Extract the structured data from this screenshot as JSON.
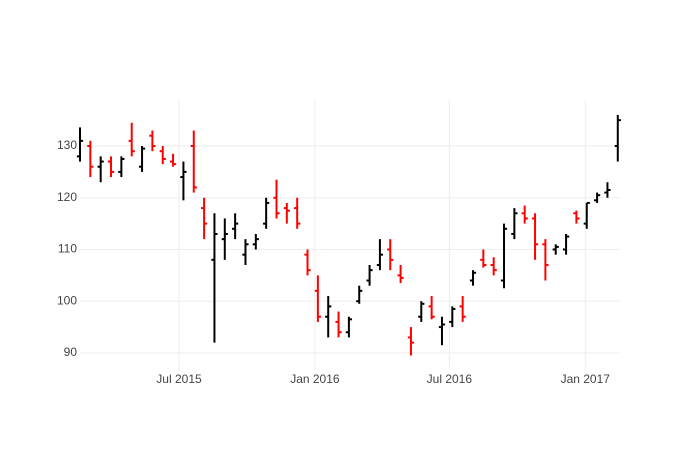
{
  "chart_data": {
    "type": "ohlc",
    "x": [
      "2015-02-17",
      "2015-03-03",
      "2015-03-17",
      "2015-03-31",
      "2015-04-14",
      "2015-04-28",
      "2015-05-12",
      "2015-05-26",
      "2015-06-09",
      "2015-06-23",
      "2015-07-07",
      "2015-07-21",
      "2015-08-04",
      "2015-08-18",
      "2015-09-01",
      "2015-09-15",
      "2015-09-29",
      "2015-10-13",
      "2015-10-27",
      "2015-11-10",
      "2015-11-24",
      "2015-12-08",
      "2015-12-22",
      "2016-01-05",
      "2016-01-19",
      "2016-02-02",
      "2016-02-16",
      "2016-03-01",
      "2016-03-15",
      "2016-03-29",
      "2016-04-12",
      "2016-04-26",
      "2016-05-10",
      "2016-05-24",
      "2016-06-07",
      "2016-06-21",
      "2016-07-05",
      "2016-07-19",
      "2016-08-02",
      "2016-08-16",
      "2016-08-30",
      "2016-09-13",
      "2016-09-27",
      "2016-10-11",
      "2016-10-25",
      "2016-11-08",
      "2016-11-22",
      "2016-12-06",
      "2016-12-20",
      "2017-01-03",
      "2017-01-17",
      "2017-01-31",
      "2017-02-14"
    ],
    "open": [
      128,
      130,
      126,
      127,
      125,
      131,
      126,
      132,
      129,
      127,
      124,
      130,
      118,
      108,
      112,
      114,
      109,
      111,
      115,
      120,
      118,
      118,
      109,
      102,
      97,
      96,
      94,
      100,
      104,
      107,
      110,
      105,
      93,
      97,
      99,
      95,
      96,
      99,
      104,
      108,
      107,
      104,
      113,
      117,
      116,
      111,
      110,
      110,
      117,
      115,
      119.5,
      121,
      130
    ],
    "high": [
      133.6,
      131,
      128,
      128,
      128,
      134.5,
      130,
      133,
      130,
      128.5,
      127,
      133,
      120,
      117,
      116,
      117,
      112,
      113,
      120,
      123.5,
      119,
      120,
      110,
      105,
      101,
      98,
      97,
      103,
      107,
      112,
      112,
      107,
      95,
      100,
      101,
      97,
      99,
      101,
      106,
      110,
      108.5,
      115,
      118,
      118.5,
      117,
      112,
      111,
      113,
      117.5,
      119,
      121,
      123,
      136
    ],
    "low": [
      127,
      124,
      123,
      124,
      124,
      128,
      125,
      129,
      126.5,
      126,
      119.5,
      121,
      112,
      92,
      108,
      112,
      107,
      110,
      114,
      116,
      115,
      114,
      105,
      96,
      93,
      93,
      93,
      99.5,
      103,
      106,
      106,
      103.5,
      89.5,
      96,
      96.5,
      91.5,
      95,
      96,
      103,
      106.5,
      105,
      102.5,
      112,
      115,
      108,
      104,
      109,
      109,
      115,
      114,
      119,
      120,
      127
    ],
    "close": [
      131,
      126,
      127,
      125,
      127.5,
      129,
      129.5,
      130,
      127.5,
      126.5,
      125,
      122,
      115,
      113,
      113,
      115,
      111,
      112,
      119,
      117,
      117.5,
      115,
      106,
      97,
      99,
      94,
      96.5,
      102,
      106,
      109,
      108,
      104.5,
      92,
      99.5,
      97,
      95.5,
      98.5,
      97,
      105.5,
      107,
      106,
      114,
      117,
      116,
      111,
      107,
      110.5,
      112.5,
      116,
      119,
      120.5,
      121.5,
      135
    ],
    "increasing_color": "#000000",
    "decreasing_color": "#ff0000",
    "xlim": [
      "2015-02-17",
      "2017-02-17"
    ],
    "xticks": [
      {
        "value": "2015-07-01",
        "label": "Jul 2015"
      },
      {
        "value": "2016-01-01",
        "label": "Jan 2016"
      },
      {
        "value": "2016-07-01",
        "label": "Jul 2016"
      },
      {
        "value": "2017-01-01",
        "label": "Jan 2017"
      }
    ],
    "ylim": [
      86.7,
      138.9
    ],
    "yticks": [
      90,
      100,
      110,
      120,
      130
    ],
    "grid": true
  }
}
